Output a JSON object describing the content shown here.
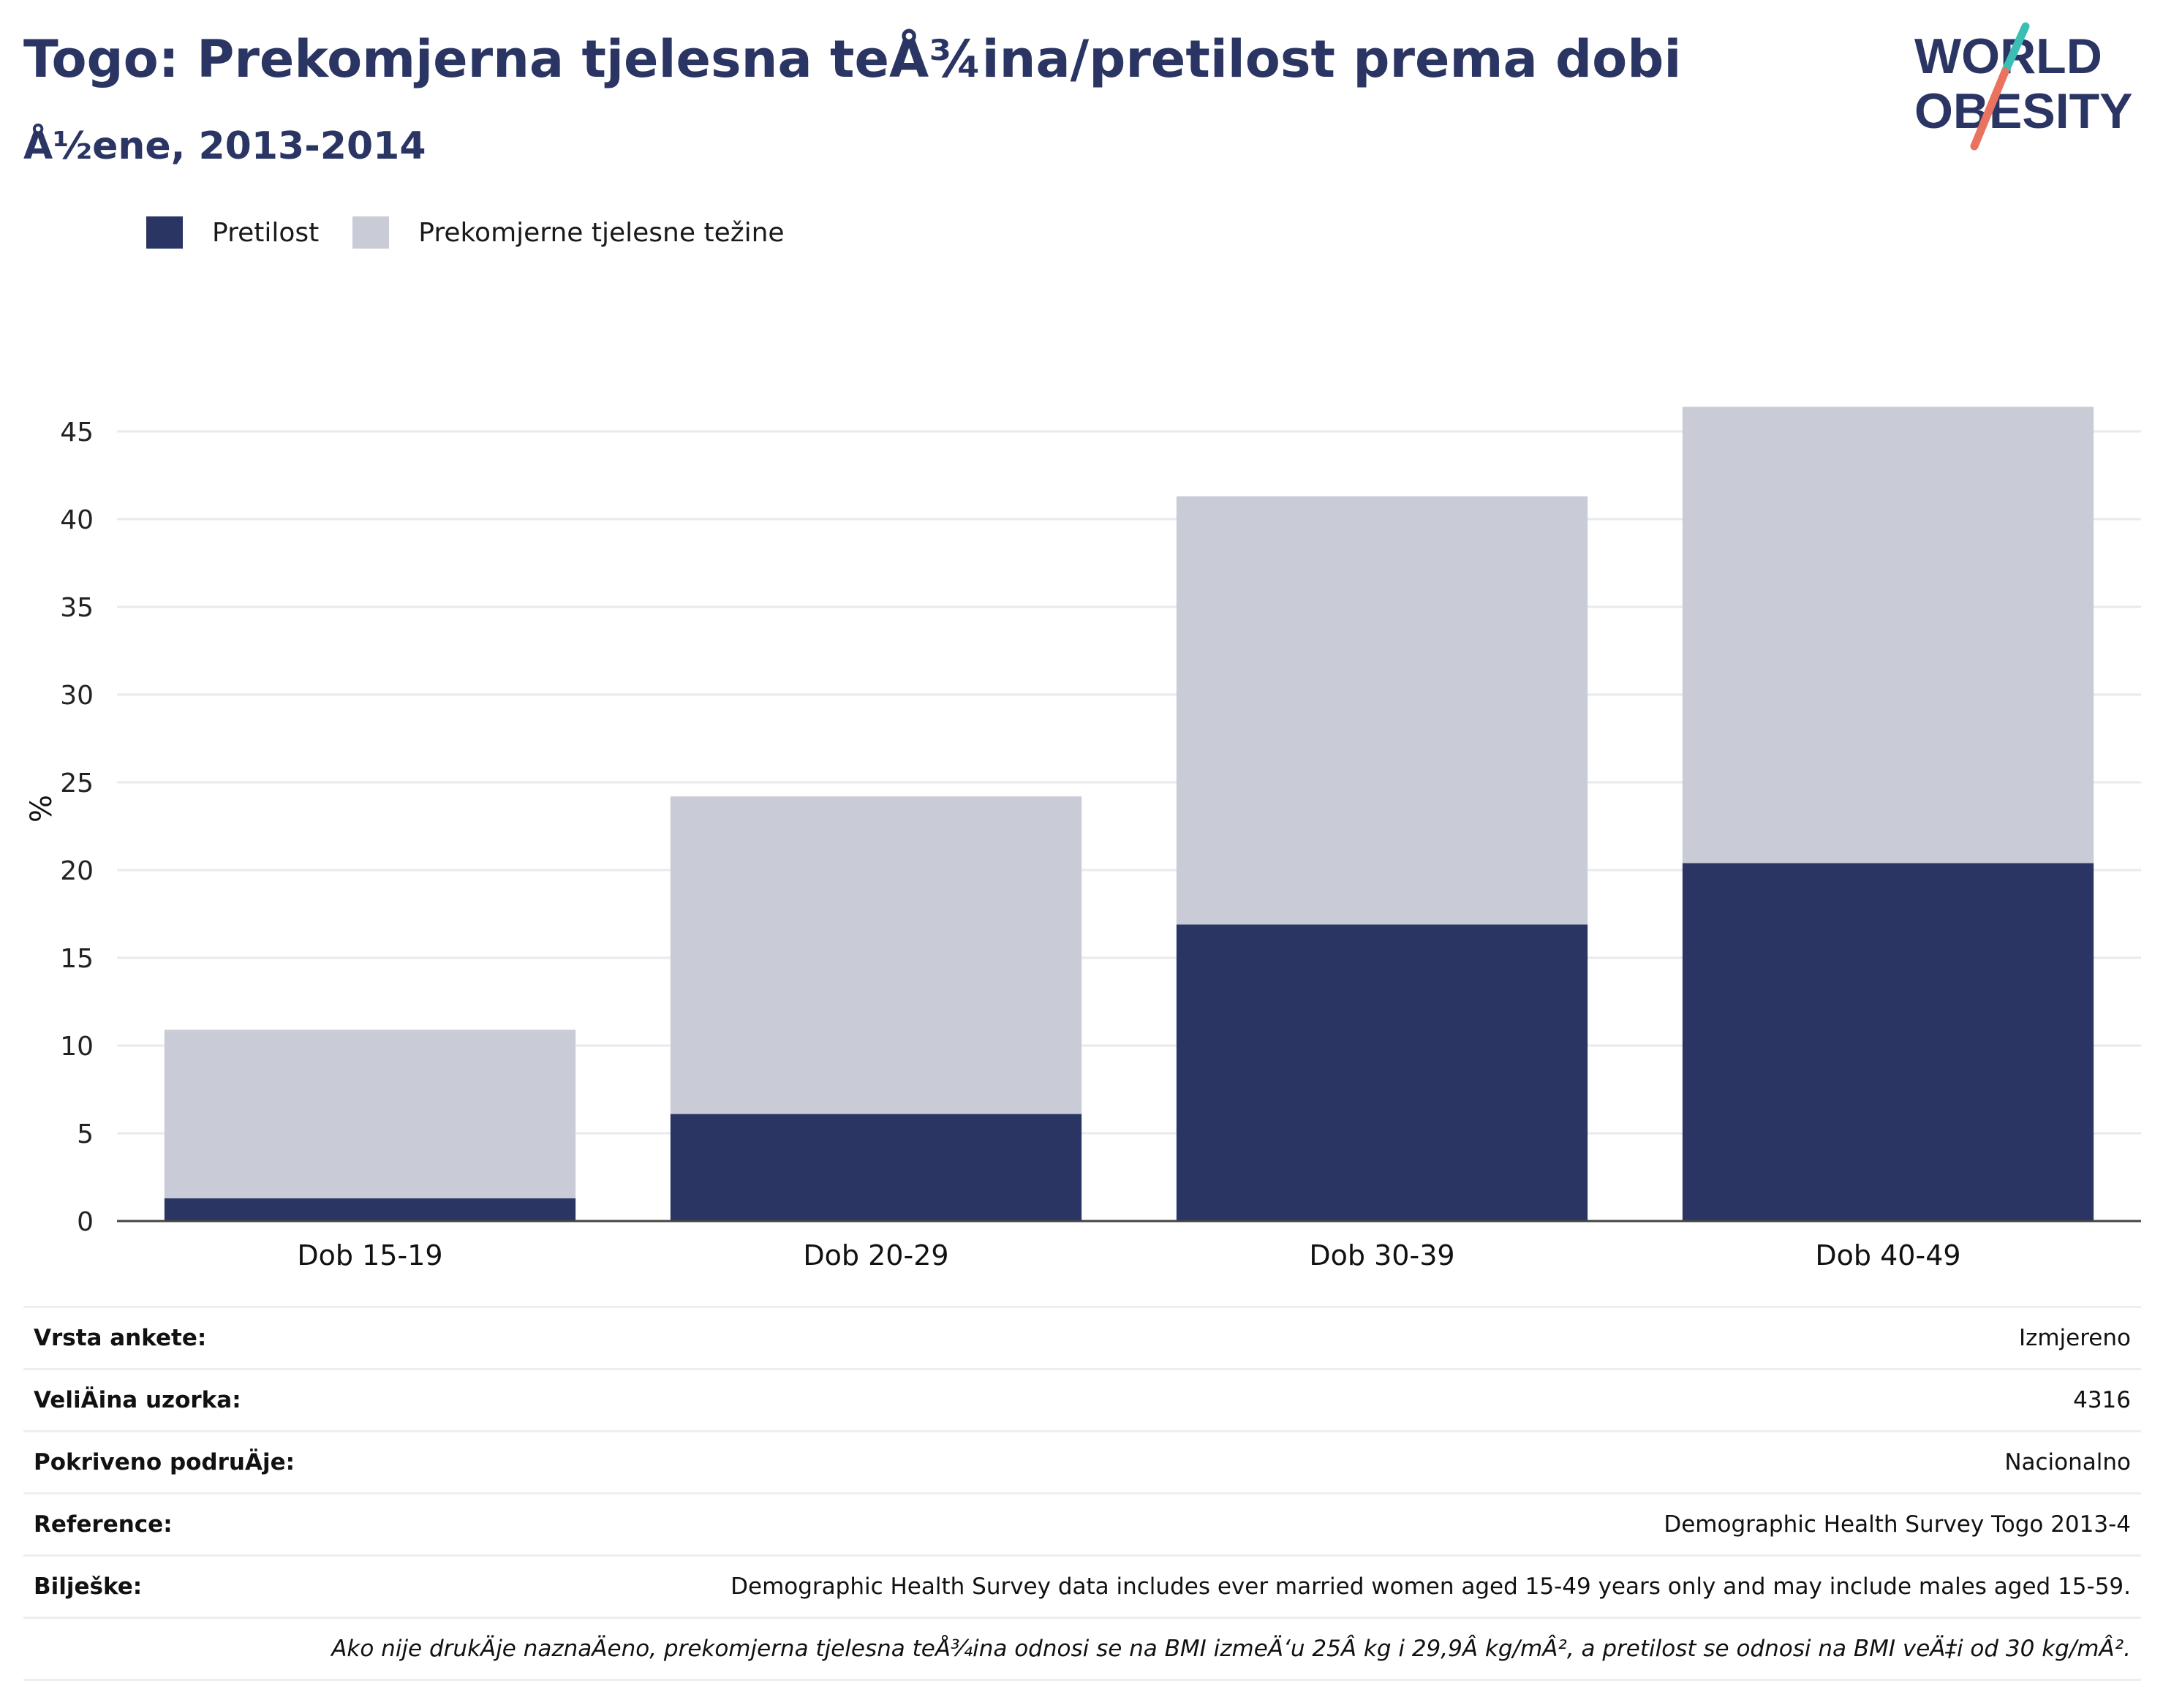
{
  "header": {
    "title": "Togo: Prekomjerna tjelesna teÅ¾ina/pretilost prema dobi",
    "subtitle": "Å½ene, 2013-2014"
  },
  "logo": {
    "line1": "WORLD",
    "line2": "OBESITY"
  },
  "colors": {
    "obesity": "#2a3563",
    "overweight": "#c9cbd6",
    "title": "#2a3563",
    "logo_teal": "#3bbfb5",
    "logo_coral": "#e9735f",
    "gridline": "#e9eaef",
    "axis": "#444444"
  },
  "legend": {
    "items": [
      {
        "label": "Pretilost",
        "color": "#2a3563"
      },
      {
        "label": "Prekomjerne tjelesne težine",
        "color": "#c9cbd6"
      }
    ]
  },
  "chart_data": {
    "type": "bar",
    "stacked": true,
    "categories": [
      "Dob 15-19",
      "Dob 20-29",
      "Dob 30-39",
      "Dob 40-49"
    ],
    "series": [
      {
        "name": "Pretilost",
        "values": [
          1.3,
          6.1,
          16.9,
          20.4
        ]
      },
      {
        "name": "Prekomjerne tjelesne težine",
        "values": [
          9.6,
          18.1,
          24.4,
          26.0
        ]
      }
    ],
    "ylabel": "%",
    "ylim": [
      0,
      47
    ],
    "yticks": [
      0,
      5,
      10,
      15,
      20,
      25,
      30,
      35,
      40,
      45
    ],
    "grid": true,
    "legend_position": "top-left"
  },
  "details": {
    "rows": [
      {
        "label": "Vrsta ankete:",
        "value": "Izmjereno"
      },
      {
        "label": "VeliÄ\bina uzorka:",
        "value": "4316"
      },
      {
        "label": "Pokriveno podruÄ\bje:",
        "value": "Nacionalno"
      },
      {
        "label": "Reference:",
        "value": "Demographic Health Survey Togo 2013-4"
      },
      {
        "label": "Bilješke:",
        "value": "Demographic Health Survey data includes ever married women aged 15-49 years only and may include males aged 15-59."
      }
    ],
    "footnote": "Ako nije drukÄ\bje naznaÄ\beno, prekomjerna tjelesna teÅ¾ina odnosi se na BMI izmeÄ‘u 25Â kg i 29,9Â kg/mÂ², a pretilost se odnosi na BMI veÄ‡i od 30 kg/mÂ²."
  }
}
